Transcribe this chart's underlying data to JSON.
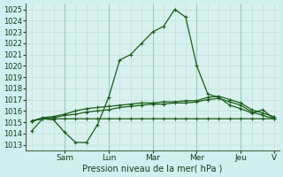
{
  "bg_color": "#cff0ee",
  "plot_bg_color": "#d8f0ee",
  "grid_color_fine": "#b8ddd8",
  "grid_color_major": "#99ccbb",
  "line_color": "#1a5c1a",
  "marker_color": "#1a5c1a",
  "xlabel": "Pression niveau de la mer( hPa )",
  "ylim": [
    1012.5,
    1025.5
  ],
  "yticks": [
    1013,
    1014,
    1015,
    1016,
    1017,
    1018,
    1019,
    1020,
    1021,
    1022,
    1023,
    1024,
    1025
  ],
  "day_labels": [
    "Sam",
    "Lun",
    "Mar",
    "Mer",
    "Jeu",
    "V"
  ],
  "day_tick_positions": [
    3,
    7,
    11,
    15,
    19,
    22
  ],
  "day_line_positions": [
    3,
    7,
    11,
    15,
    19
  ],
  "series_main": [
    1014.2,
    1015.3,
    1015.2,
    1014.1,
    1013.2,
    1013.2,
    1014.8,
    1017.2,
    1020.5,
    1021.0,
    1022.0,
    1023.0,
    1023.5,
    1025.0,
    1024.3,
    1020.0,
    1017.5,
    1017.2,
    1016.5,
    1016.2,
    1015.8,
    1016.1,
    1015.3
  ],
  "series_flat1": [
    1015.1,
    1015.3,
    1015.3,
    1015.3,
    1015.3,
    1015.3,
    1015.3,
    1015.3,
    1015.3,
    1015.3,
    1015.3,
    1015.3,
    1015.3,
    1015.3,
    1015.3,
    1015.3,
    1015.3,
    1015.3,
    1015.3,
    1015.3,
    1015.3,
    1015.3,
    1015.3
  ],
  "series_rise1": [
    1015.1,
    1015.3,
    1015.4,
    1015.6,
    1015.7,
    1015.9,
    1016.0,
    1016.1,
    1016.3,
    1016.4,
    1016.5,
    1016.6,
    1016.6,
    1016.7,
    1016.7,
    1016.8,
    1017.0,
    1017.1,
    1016.8,
    1016.5,
    1015.9,
    1015.6,
    1015.3
  ],
  "series_rise2": [
    1015.1,
    1015.4,
    1015.5,
    1015.7,
    1016.0,
    1016.2,
    1016.3,
    1016.4,
    1016.5,
    1016.6,
    1016.7,
    1016.7,
    1016.8,
    1016.8,
    1016.9,
    1016.9,
    1017.2,
    1017.3,
    1017.0,
    1016.7,
    1016.1,
    1015.8,
    1015.5
  ],
  "num_points": 23,
  "xlim": [
    -0.5,
    22.5
  ]
}
